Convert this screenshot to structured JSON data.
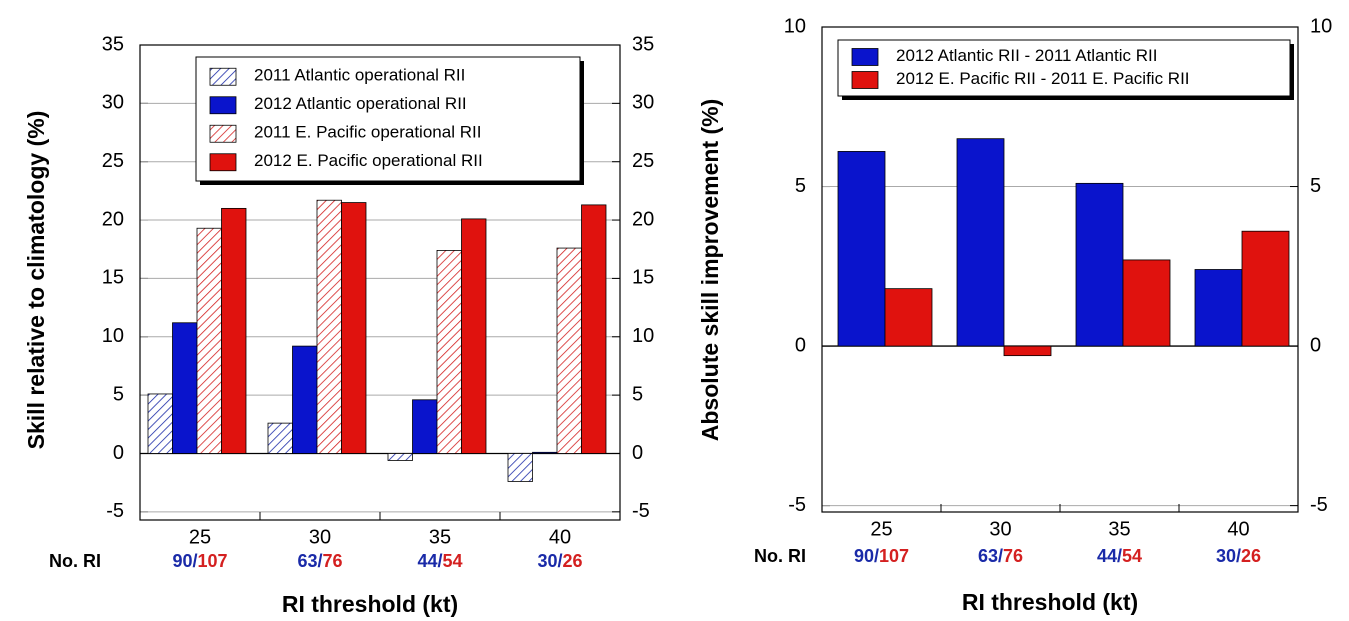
{
  "chart_data": [
    {
      "type": "bar",
      "y_label": "Skill relative to climatology (%)",
      "x_label": "RI threshold (kt)",
      "categories": [
        "25",
        "30",
        "35",
        "40"
      ],
      "series": [
        {
          "name": "2011 Atlantic operational RII",
          "color": "#1a2aa8",
          "pattern": "hatch",
          "values": [
            5.1,
            2.6,
            -0.6,
            -2.4
          ]
        },
        {
          "name": "2012 Atlantic operational RII",
          "color": "#0a14cc",
          "pattern": "solid",
          "values": [
            11.2,
            9.2,
            4.6,
            0.1
          ]
        },
        {
          "name": "2011 E. Pacific operational RII",
          "color": "#d42020",
          "pattern": "hatch",
          "values": [
            19.3,
            21.7,
            17.4,
            17.6
          ]
        },
        {
          "name": "2012 E. Pacific operational RII",
          "color": "#e0120e",
          "pattern": "solid",
          "values": [
            21.0,
            21.5,
            20.1,
            21.3
          ]
        }
      ],
      "ylim": [
        -5.7,
        35
      ],
      "yticks": [
        -5,
        0,
        5,
        10,
        15,
        20,
        25,
        30,
        35
      ],
      "y2lim": [
        -5.7,
        35
      ],
      "y2ticks": [
        -5,
        0,
        5,
        10,
        15,
        20,
        25,
        30,
        35
      ],
      "grid": true,
      "legend": "top-right",
      "ri_counts": {
        "label": "No. RI",
        "separator": "/",
        "atlantic": [
          90,
          63,
          44,
          30
        ],
        "pacific": [
          107,
          76,
          54,
          26
        ],
        "atlantic_color": "#1a2aa8",
        "pacific_color": "#d42020"
      }
    },
    {
      "type": "bar",
      "y_label": "Absolute skill improvement (%)",
      "x_label": "RI threshold (kt)",
      "categories": [
        "25",
        "30",
        "35",
        "40"
      ],
      "series": [
        {
          "name": "2012 Atlantic RII - 2011 Atlantic RII",
          "color": "#0a14cc",
          "pattern": "solid",
          "values": [
            6.1,
            6.5,
            5.1,
            2.4
          ]
        },
        {
          "name": "2012 E. Pacific RII - 2011 E. Pacific RII",
          "color": "#e0120e",
          "pattern": "solid",
          "values": [
            1.8,
            -0.3,
            2.7,
            3.6
          ]
        }
      ],
      "ylim": [
        -5.2,
        10
      ],
      "yticks": [
        -5,
        0,
        5,
        10
      ],
      "y2lim": [
        -5.2,
        10
      ],
      "y2ticks": [
        -5,
        0,
        5,
        10
      ],
      "grid": true,
      "legend": "top-left",
      "ri_counts": {
        "label": "No. RI",
        "separator": "/",
        "atlantic": [
          90,
          63,
          44,
          30
        ],
        "pacific": [
          107,
          76,
          54,
          26
        ],
        "atlantic_color": "#1a2aa8",
        "pacific_color": "#d42020"
      }
    }
  ]
}
